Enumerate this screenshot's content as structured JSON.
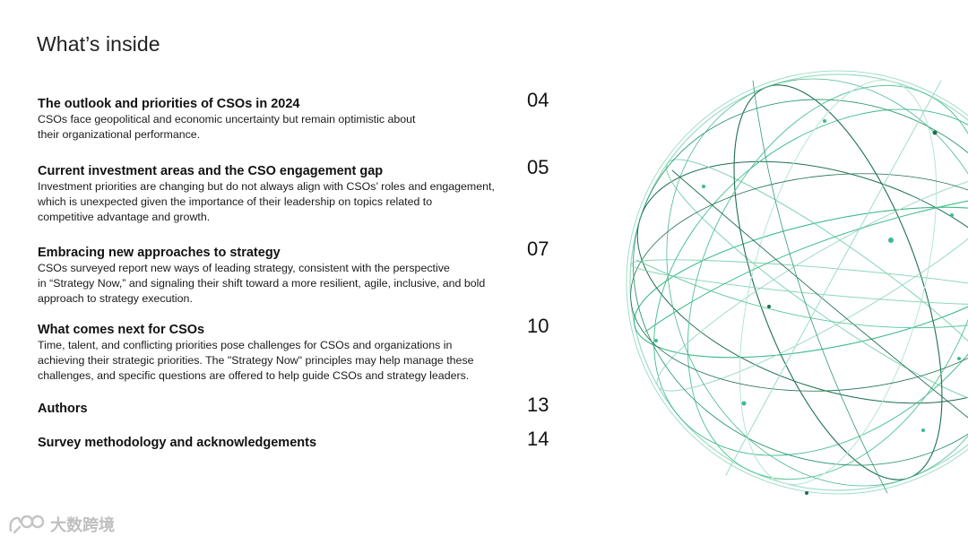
{
  "page": {
    "title": "What’s inside"
  },
  "toc": [
    {
      "title": "The outlook and priorities of CSOs in 2024",
      "page": "04",
      "description": [
        "CSOs face geopolitical and economic uncertainty but remain optimistic about",
        "their organizational performance."
      ]
    },
    {
      "title": "Current investment areas and the CSO engagement gap",
      "page": "05",
      "description": [
        "Investment priorities are changing but do not always align with CSOs’ roles and engagement,",
        "which is unexpected given the importance of their leadership on topics related to",
        "competitive advantage and growth."
      ]
    },
    {
      "title": "Embracing new approaches to strategy",
      "page": "07",
      "description": [
        "CSOs surveyed report new ways of leading strategy, consistent with the perspective",
        "in “Strategy Now,” and signaling their shift toward a more resilient, agile, inclusive, and bold",
        "approach to strategy execution."
      ]
    },
    {
      "title": "What comes next for CSOs",
      "page": "10",
      "description": [
        "Time, talent, and conflicting priorities pose challenges for CSOs and organizations in",
        "achieving their strategic priorities. The \"Strategy Now\" principles may help manage these",
        "challenges, and specific questions are offered to help guide CSOs and strategy leaders."
      ]
    },
    {
      "title": "Authors",
      "page": "13",
      "description": []
    },
    {
      "title": "Survey methodology and acknowledgements",
      "page": "14",
      "description": []
    }
  ],
  "decoration": {
    "icon": "wireframe-globe-icon",
    "accent_color": "#3dbb8a",
    "dark_color": "#1f6f4e"
  },
  "watermark": {
    "text": "大数跨境",
    "icon": "watermark-logo-icon"
  }
}
